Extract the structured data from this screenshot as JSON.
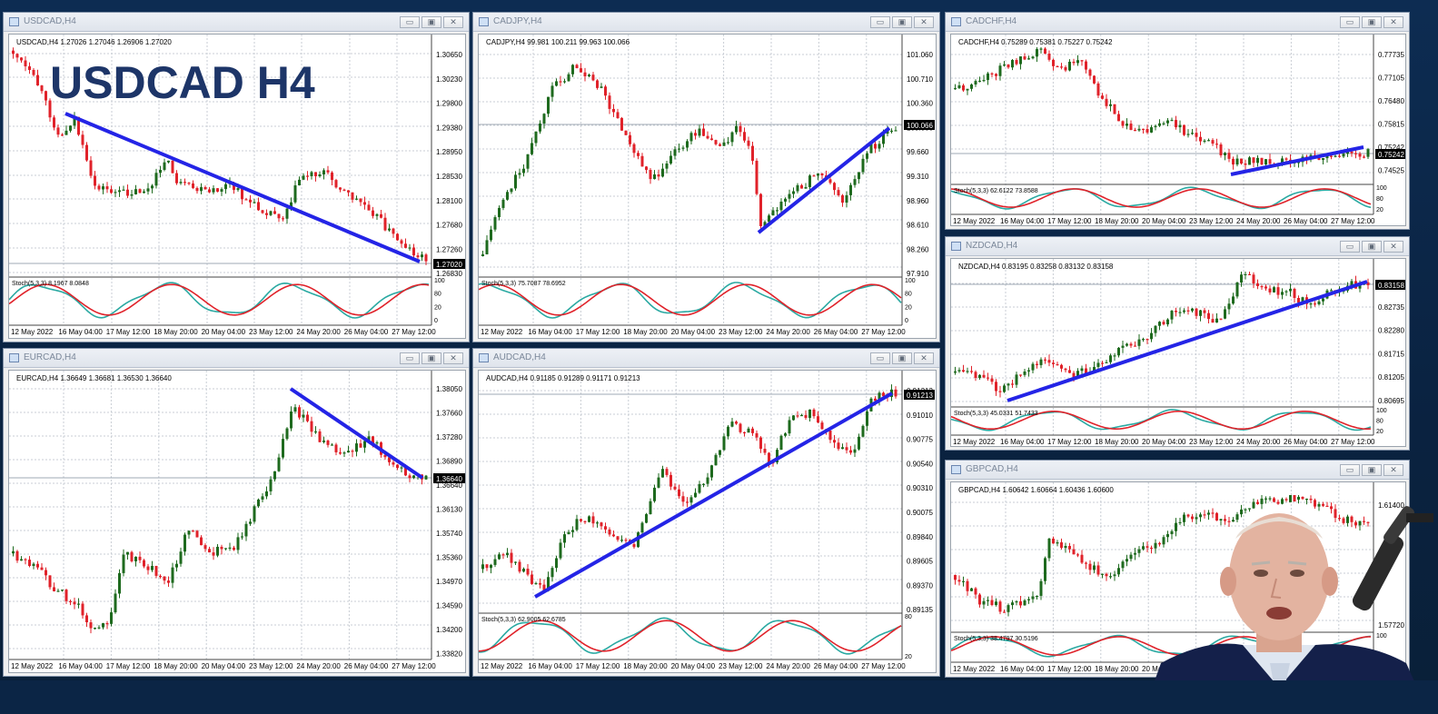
{
  "overlay": {
    "title": "USDCAD H4"
  },
  "colors": {
    "bull": "#1e6a1e",
    "bear": "#e0222a",
    "trend": "#2424e6",
    "stoch_main": "#2aa9a2",
    "stoch_signal": "#e0222a"
  },
  "dates": [
    "12 May 2022",
    "16 May 04:00",
    "17 May 12:00",
    "18 May 20:00",
    "20 May 04:00",
    "23 May 12:00",
    "24 May 20:00",
    "26 May 04:00",
    "27 May 12:00"
  ],
  "window_buttons": {
    "minimize": "▭",
    "maximize": "▣",
    "close": "✕"
  },
  "charts": [
    {
      "id": "usdcad",
      "window_title": "USDCAD,H4",
      "info": "USDCAD,H4  1.27026 1.27046 1.26906 1.27020",
      "prices": [
        "1.30650",
        "1.30230",
        "1.29800",
        "1.29380",
        "1.28950",
        "1.28530",
        "1.28100",
        "1.27680",
        "1.27260",
        "1.26830"
      ],
      "current": "1.27020",
      "stoch_label": "Stoch(5,3,3) 8.1967 8.0848",
      "stoch_levels": [
        "100",
        "80",
        "20",
        "0"
      ]
    },
    {
      "id": "cadjpy",
      "window_title": "CADJPY,H4",
      "info": "CADJPY,H4  99.981 100.211 99.963 100.066",
      "prices": [
        "101.060",
        "100.710",
        "100.360",
        "100.066",
        "99.660",
        "99.310",
        "98.960",
        "98.610",
        "98.260",
        "97.910"
      ],
      "current": "100.066",
      "stoch_label": "Stoch(5,3,3) 75.7087 78.6952",
      "stoch_levels": [
        "100",
        "80",
        "20",
        "0"
      ]
    },
    {
      "id": "cadchf",
      "window_title": "CADCHF,H4",
      "info": "CADCHF,H4  0.75289 0.75381 0.75227 0.75242",
      "prices": [
        "0.77735",
        "0.77105",
        "0.76480",
        "0.75815",
        "0.75242",
        "0.74525"
      ],
      "current": "0.75242",
      "stoch_label": "Stoch(5,3,3) 62.6122 73.8588",
      "stoch_levels": [
        "100",
        "80",
        "20"
      ]
    },
    {
      "id": "nzdcad",
      "window_title": "NZDCAD,H4",
      "info": "NZDCAD,H4  0.83195 0.83258 0.83132 0.83158",
      "prices": [
        "0.83158",
        "0.82735",
        "0.82280",
        "0.81715",
        "0.81205",
        "0.80695"
      ],
      "current": "0.83158",
      "stoch_label": "Stoch(5,3,3) 45.0331 51.7433",
      "stoch_levels": [
        "100",
        "80",
        "20"
      ]
    },
    {
      "id": "eurcad",
      "window_title": "EURCAD,H4",
      "info": "EURCAD,H4  1.36649 1.36681 1.36530 1.36640",
      "prices": [
        "1.38050",
        "1.37660",
        "1.37280",
        "1.36890",
        "1.36640",
        "1.36130",
        "1.35740",
        "1.35360",
        "1.34970",
        "1.34590",
        "1.34200",
        "1.33820"
      ],
      "current": "1.36640"
    },
    {
      "id": "audcad",
      "window_title": "AUDCAD,H4",
      "info": "AUDCAD,H4  0.91185 0.91289 0.91171 0.91213",
      "prices": [
        "0.91213",
        "0.91010",
        "0.90775",
        "0.90540",
        "0.90310",
        "0.90075",
        "0.89840",
        "0.89605",
        "0.89370",
        "0.89135"
      ],
      "current": "0.91213",
      "stoch_label": "Stoch(5,3,3) 62.9005 62.6785",
      "stoch_levels": [
        "80",
        "20"
      ]
    },
    {
      "id": "gbpcad",
      "window_title": "GBPCAD,H4",
      "info": "GBPCAD,H4  1.60642 1.60664 1.60436 1.60600",
      "prices": [
        "1.61400",
        "1.57720"
      ],
      "stoch_label": "Stoch(5,3,3) 38.4797 30.5196",
      "stoch_levels": [
        "100"
      ]
    }
  ]
}
